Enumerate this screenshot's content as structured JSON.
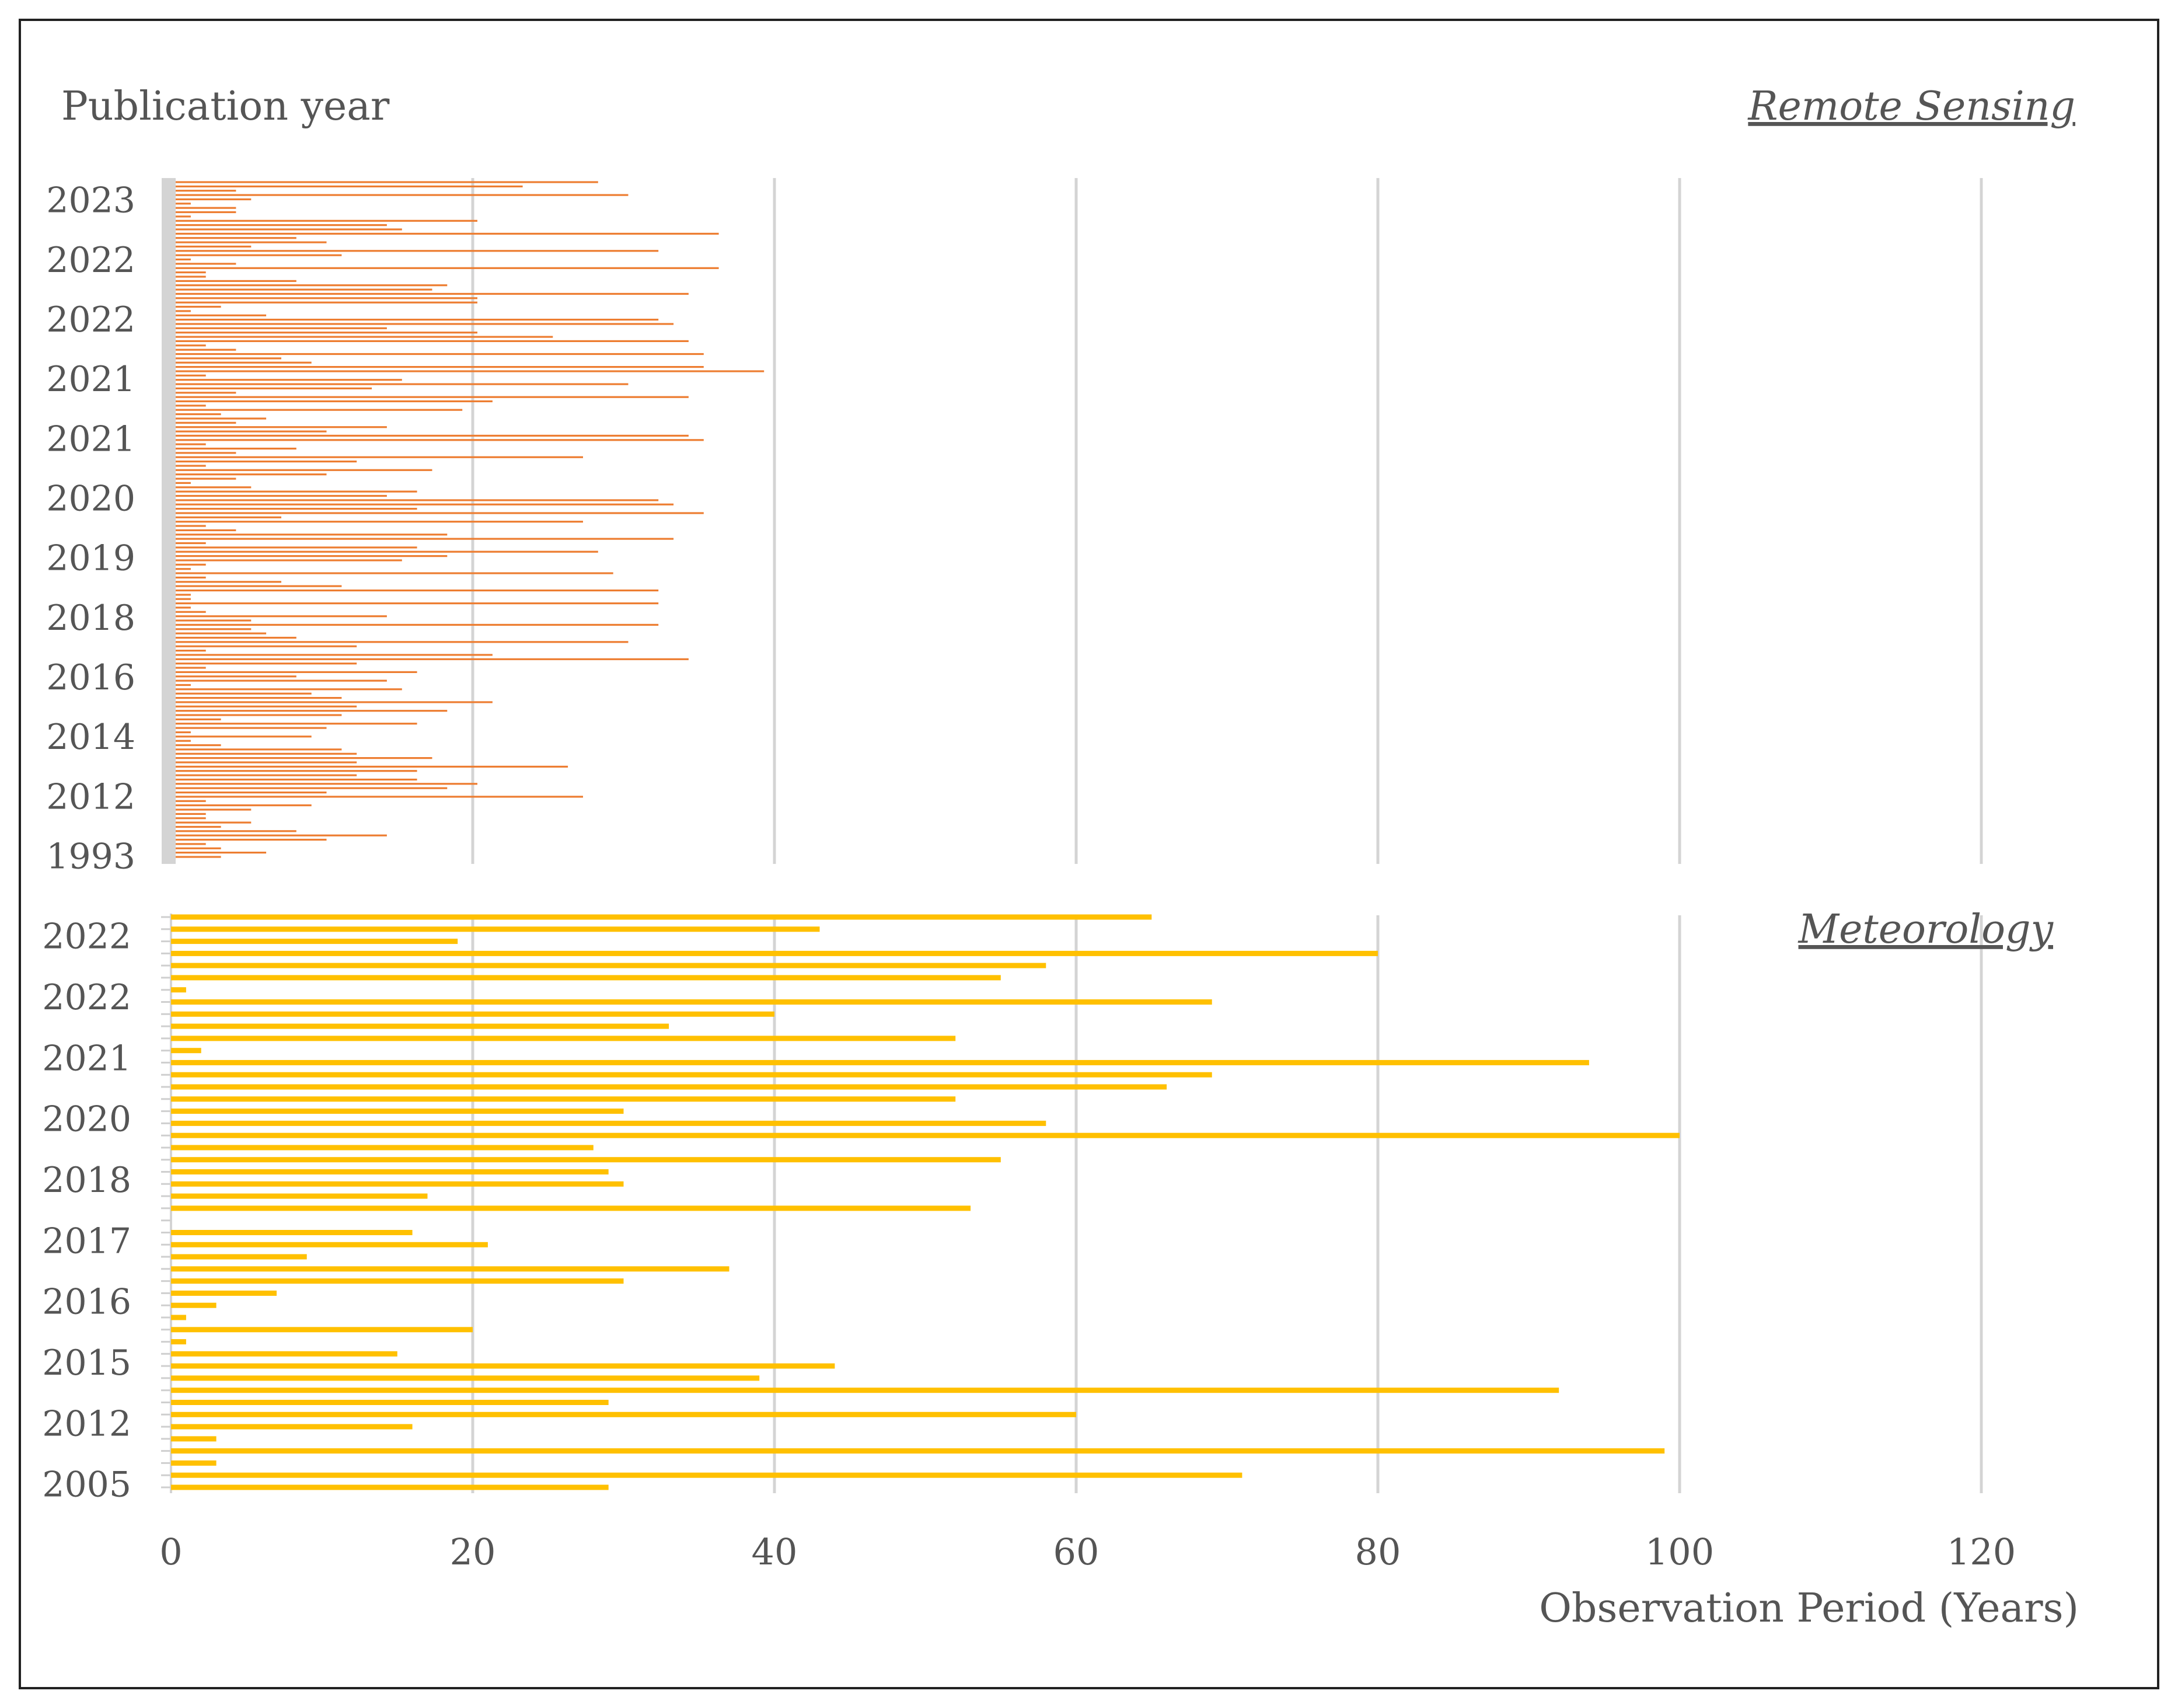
{
  "chart_data": [
    {
      "type": "bar",
      "orientation": "horizontal",
      "title": "Remote Sensing",
      "ylabel": "Publication year",
      "xlabel": "",
      "xlim": [
        0,
        120
      ],
      "xticks": [
        0,
        20,
        40,
        60,
        80,
        100,
        120
      ],
      "grid": true,
      "color": "#ED7D31",
      "year_tick_labels": [
        "2023",
        "2022",
        "2022",
        "2021",
        "2021",
        "2020",
        "2019",
        "2018",
        "2016",
        "2014",
        "2012",
        "1993"
      ],
      "values": [
        28,
        23,
        4,
        30,
        5,
        1,
        4,
        4,
        1,
        20,
        14,
        15,
        36,
        8,
        10,
        5,
        32,
        11,
        1,
        4,
        36,
        2,
        2,
        8,
        18,
        17,
        34,
        20,
        20,
        3,
        1,
        6,
        32,
        33,
        14,
        20,
        25,
        34,
        2,
        4,
        35,
        7,
        9,
        35,
        39,
        2,
        15,
        30,
        13,
        4,
        34,
        21,
        2,
        19,
        3,
        6,
        4,
        14,
        10,
        34,
        35,
        2,
        8,
        4,
        27,
        12,
        2,
        17,
        10,
        4,
        1,
        5,
        16,
        14,
        32,
        33,
        16,
        35,
        7,
        27,
        2,
        4,
        18,
        33,
        2,
        16,
        28,
        18,
        15,
        2,
        1,
        29,
        2,
        7,
        11,
        32,
        1,
        1,
        32,
        1,
        2,
        14,
        5,
        32,
        5,
        6,
        8,
        30,
        12,
        2,
        21,
        34,
        12,
        2,
        16,
        8,
        14,
        1,
        15,
        9,
        11,
        21,
        12,
        18,
        11,
        3,
        16,
        10,
        1,
        9,
        1,
        3,
        11,
        12,
        17,
        12,
        26,
        16,
        12,
        16,
        20,
        18,
        10,
        27,
        2,
        9,
        5,
        2,
        2,
        5,
        3,
        8,
        14,
        10,
        2,
        3,
        6,
        3
      ]
    },
    {
      "type": "bar",
      "orientation": "horizontal",
      "title": "Meteorology",
      "xlabel": "Observation Period (Years)",
      "ylabel": "",
      "xlim": [
        0,
        120
      ],
      "xticks": [
        0,
        20,
        40,
        60,
        80,
        100,
        120
      ],
      "grid": true,
      "color": "#FFC000",
      "year_tick_labels": [
        "2022",
        "2022",
        "2021",
        "2020",
        "2018",
        "2017",
        "2016",
        "2015",
        "2012",
        "2005"
      ],
      "values": [
        65,
        43,
        19,
        80,
        58,
        55,
        1,
        69,
        40,
        33,
        52,
        2,
        94,
        69,
        66,
        52,
        30,
        58,
        100,
        28,
        55,
        29,
        30,
        17,
        53,
        0,
        16,
        21,
        9,
        37,
        30,
        7,
        3,
        1,
        20,
        1,
        15,
        44,
        39,
        92,
        29,
        60,
        16,
        3,
        99,
        3,
        71,
        29
      ]
    }
  ]
}
